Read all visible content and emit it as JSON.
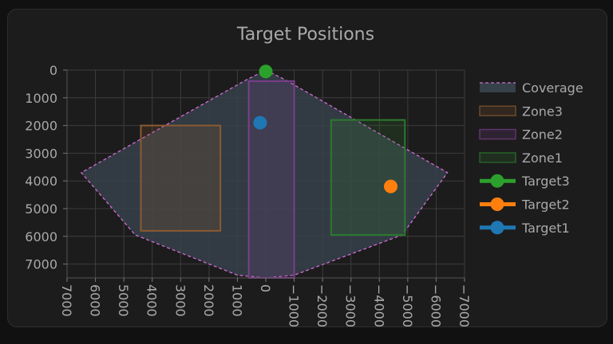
{
  "chart_data": {
    "type": "scatter",
    "title": "Target Positions",
    "xlim": [
      7000,
      -7000
    ],
    "ylim": [
      7500,
      0
    ],
    "x_ticks": [
      7000,
      6000,
      5000,
      4000,
      3000,
      2000,
      1000,
      0,
      -1000,
      -2000,
      -3000,
      -4000,
      -5000,
      -6000,
      -7000
    ],
    "x_tick_labels": [
      "7000",
      "6000",
      "5000",
      "4000",
      "3000",
      "2000",
      "1000",
      "0",
      "−1000",
      "−2000",
      "−3000",
      "−4000",
      "−5000",
      "−6000",
      "−7000"
    ],
    "y_ticks": [
      0,
      1000,
      2000,
      3000,
      4000,
      5000,
      6000,
      7000
    ],
    "y_tick_labels": [
      "0",
      "1000",
      "2000",
      "3000",
      "4000",
      "5000",
      "6000",
      "7000"
    ],
    "grid": true,
    "legend_position": "right",
    "coverage": {
      "name": "Coverage",
      "color": "#d36bd6",
      "fill": "#36414a",
      "points": [
        [
          0,
          0
        ],
        [
          -700,
          360
        ],
        [
          -6400,
          3700
        ],
        [
          -4800,
          5950
        ],
        [
          -1000,
          7400
        ],
        [
          0,
          7500
        ],
        [
          1000,
          7400
        ],
        [
          4600,
          5950
        ],
        [
          6500,
          3700
        ],
        [
          700,
          360
        ]
      ]
    },
    "zones": [
      {
        "name": "Zone3",
        "color": "#8a5a32",
        "x": [
          4400,
          1600
        ],
        "y": [
          2000,
          5800
        ]
      },
      {
        "name": "Zone2",
        "color": "#7a3f8c",
        "x": [
          600,
          -1000
        ],
        "y": [
          400,
          7500
        ]
      },
      {
        "name": "Zone1",
        "color": "#2c7a2f",
        "x": [
          -2300,
          -4900
        ],
        "y": [
          1800,
          5950
        ]
      }
    ],
    "targets": [
      {
        "name": "Target3",
        "color": "#2ca02c",
        "x": 0,
        "y": 50
      },
      {
        "name": "Target2",
        "color": "#ff7f0e",
        "x": -4400,
        "y": 4200
      },
      {
        "name": "Target1",
        "color": "#1f77b4",
        "x": 200,
        "y": 1900
      }
    ],
    "legend": [
      "Coverage",
      "Zone3",
      "Zone2",
      "Zone1",
      "Target3",
      "Target2",
      "Target1"
    ]
  }
}
